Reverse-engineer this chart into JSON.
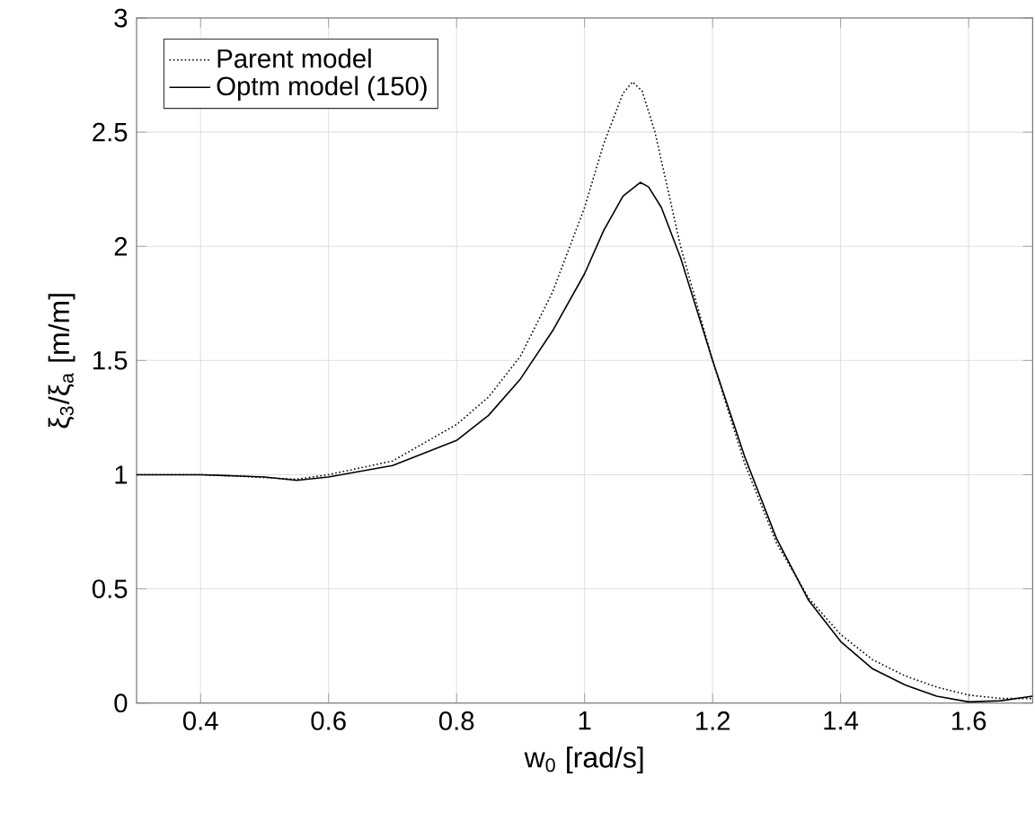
{
  "chart_data": {
    "type": "line",
    "xlabel": "w$_{0}$ [rad/s]",
    "ylabel": "ξ$_{3}$/ξ$_{a}$ [m/m]",
    "xlim": [
      0.3,
      1.7
    ],
    "ylim": [
      0,
      3
    ],
    "xticks": [
      0.4,
      0.6,
      0.8,
      1,
      1.2,
      1.4,
      1.6
    ],
    "yticks": [
      0,
      0.5,
      1,
      1.5,
      2,
      2.5,
      3
    ],
    "grid": true,
    "legend": "top left",
    "marker": "none",
    "series": [
      {
        "name": "Parent model",
        "color": "#000000",
        "line_style": "dotted",
        "x": [
          0.3,
          0.4,
          0.45,
          0.55,
          0.6,
          0.7,
          0.8,
          0.85,
          0.9,
          0.95,
          1.0,
          1.03,
          1.06,
          1.075,
          1.09,
          1.11,
          1.15,
          1.2,
          1.25,
          1.3,
          1.35,
          1.4,
          1.45,
          1.5,
          1.55,
          1.6,
          1.65,
          1.7
        ],
        "values": [
          1.0,
          1.0,
          0.995,
          0.98,
          1.0,
          1.06,
          1.22,
          1.34,
          1.52,
          1.8,
          2.17,
          2.45,
          2.67,
          2.72,
          2.68,
          2.5,
          2.0,
          1.5,
          1.05,
          0.7,
          0.46,
          0.3,
          0.19,
          0.12,
          0.07,
          0.035,
          0.02,
          0.02
        ]
      },
      {
        "name": "Optm model (150)",
        "color": "#000000",
        "line_style": "solid",
        "x": [
          0.3,
          0.4,
          0.5,
          0.55,
          0.6,
          0.7,
          0.8,
          0.85,
          0.9,
          0.95,
          1.0,
          1.03,
          1.06,
          1.087,
          1.1,
          1.12,
          1.15,
          1.2,
          1.25,
          1.3,
          1.35,
          1.4,
          1.45,
          1.5,
          1.55,
          1.6,
          1.65,
          1.7
        ],
        "values": [
          1.0,
          1.0,
          0.99,
          0.975,
          0.99,
          1.04,
          1.15,
          1.26,
          1.42,
          1.63,
          1.88,
          2.07,
          2.22,
          2.28,
          2.26,
          2.17,
          1.95,
          1.5,
          1.08,
          0.72,
          0.45,
          0.27,
          0.15,
          0.08,
          0.03,
          0.005,
          0.01,
          0.03
        ]
      }
    ]
  }
}
